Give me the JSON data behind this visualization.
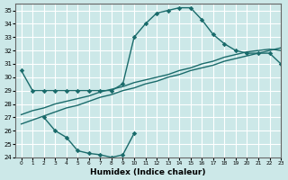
{
  "xlabel": "Humidex (Indice chaleur)",
  "xlim": [
    -0.5,
    23
  ],
  "ylim": [
    24,
    35.5
  ],
  "yticks": [
    24,
    25,
    26,
    27,
    28,
    29,
    30,
    31,
    32,
    33,
    34,
    35
  ],
  "xticks": [
    0,
    1,
    2,
    3,
    4,
    5,
    6,
    7,
    8,
    9,
    10,
    11,
    12,
    13,
    14,
    15,
    16,
    17,
    18,
    19,
    20,
    21,
    22,
    23
  ],
  "bg_color": "#cce8e8",
  "grid_color": "#ffffff",
  "line_color": "#1a6b6b",
  "line_width": 1.0,
  "markersize": 2.8,
  "curve1_x": [
    0,
    1,
    2,
    3,
    4,
    5,
    6,
    7,
    8,
    9,
    10,
    11,
    12,
    13,
    14,
    15,
    16,
    17,
    18,
    19,
    20,
    21,
    22,
    23
  ],
  "curve1_y": [
    30.5,
    29.0,
    29.0,
    29.0,
    29.0,
    29.0,
    29.0,
    29.0,
    29.0,
    29.5,
    33.0,
    34.0,
    34.8,
    35.0,
    35.2,
    35.2,
    34.3,
    33.2,
    32.5,
    32.0,
    31.8,
    31.8,
    31.8,
    31.0
  ],
  "curve2_x": [
    0,
    1,
    2,
    3,
    4,
    5,
    6,
    7,
    8,
    9,
    10,
    11,
    12,
    13,
    14,
    15,
    16,
    17,
    18,
    19,
    20,
    21,
    22,
    23
  ],
  "curve2_y": [
    27.2,
    27.5,
    27.7,
    28.0,
    28.2,
    28.4,
    28.6,
    28.9,
    29.1,
    29.3,
    29.6,
    29.8,
    30.0,
    30.2,
    30.5,
    30.7,
    31.0,
    31.2,
    31.5,
    31.7,
    31.9,
    32.0,
    32.1,
    32.0
  ],
  "curve3_x": [
    0,
    1,
    2,
    3,
    4,
    5,
    6,
    7,
    8,
    9,
    10,
    11,
    12,
    13,
    14,
    15,
    16,
    17,
    18,
    19,
    20,
    21,
    22,
    23
  ],
  "curve3_y": [
    26.5,
    26.8,
    27.1,
    27.4,
    27.7,
    27.9,
    28.2,
    28.5,
    28.7,
    29.0,
    29.2,
    29.5,
    29.7,
    30.0,
    30.2,
    30.5,
    30.7,
    30.9,
    31.2,
    31.4,
    31.6,
    31.8,
    32.0,
    32.2
  ],
  "curve4_x": [
    2,
    3,
    4,
    5,
    6,
    7,
    8,
    9,
    10
  ],
  "curve4_y": [
    27.0,
    26.0,
    25.5,
    24.5,
    24.3,
    24.2,
    24.0,
    24.2,
    25.8
  ]
}
